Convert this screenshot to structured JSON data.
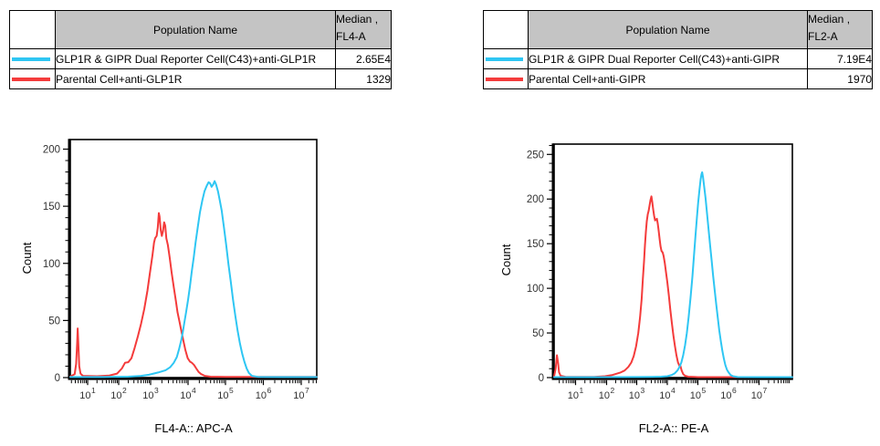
{
  "colors": {
    "cyan": "#2EC6F3",
    "red": "#F43B3B",
    "table_header_bg": "#C4C4C4",
    "axis": "#000000",
    "tick_label": "#333333"
  },
  "tables": [
    {
      "header": {
        "population": "Population Name",
        "median_line1": "Median ,",
        "median_line2": "FL4-A"
      },
      "rows": [
        {
          "color": "cyan",
          "name": "GLP1R & GIPR Dual Reporter Cell(C43)+anti-GLP1R",
          "median": "2.65E4"
        },
        {
          "color": "red",
          "name": "Parental Cell+anti-GLP1R",
          "median": "1329"
        }
      ]
    },
    {
      "header": {
        "population": "Population Name",
        "median_line1": "Median ,",
        "median_line2": "FL2-A"
      },
      "rows": [
        {
          "color": "cyan",
          "name": "GLP1R & GIPR Dual Reporter Cell(C43)+anti-GIPR",
          "median": "7.19E4"
        },
        {
          "color": "red",
          "name": "Parental Cell+anti-GIPR",
          "median": "1970"
        }
      ]
    }
  ],
  "chart_data": [
    {
      "type": "line",
      "title": "",
      "xlabel": "FL4-A:: APC-A",
      "ylabel": "Count",
      "x_scale": "log",
      "grid": false,
      "legend_position": "table-above",
      "y_ticks": [
        0,
        50,
        100,
        150,
        200
      ],
      "y_minor_step": 10,
      "ylim": [
        0,
        208
      ],
      "x_axis": {
        "decades": [
          1,
          2,
          3,
          4,
          5,
          6,
          7
        ],
        "decade_labels": [
          "10^1",
          "10^2",
          "10^3",
          "10^4",
          "10^5",
          "10^6",
          "10^7"
        ],
        "decade_fracs": [
          0.0704,
          0.1963,
          0.3259,
          0.4778,
          0.6296,
          0.7833,
          0.937
        ],
        "exp_min": 0.44,
        "exp_max": 7.62
      },
      "series": [
        {
          "name": "Parental Cell+anti-GLP1R",
          "color_key": "red",
          "median": 1329,
          "points": [
            [
              0.44,
              1
            ],
            [
              0.58,
              3
            ],
            [
              0.63,
              12
            ],
            [
              0.66,
              30
            ],
            [
              0.68,
              43
            ],
            [
              0.7,
              30
            ],
            [
              0.73,
              10
            ],
            [
              0.77,
              3.5
            ],
            [
              0.85,
              1.5
            ],
            [
              1.3,
              1.2
            ],
            [
              1.7,
              1.8
            ],
            [
              1.95,
              3.5
            ],
            [
              2.1,
              8
            ],
            [
              2.2,
              13
            ],
            [
              2.3,
              13.5
            ],
            [
              2.4,
              17
            ],
            [
              2.5,
              26
            ],
            [
              2.6,
              36
            ],
            [
              2.7,
              47
            ],
            [
              2.8,
              60
            ],
            [
              2.9,
              76
            ],
            [
              2.98,
              92
            ],
            [
              3.05,
              107
            ],
            [
              3.09,
              118
            ],
            [
              3.12,
              122
            ],
            [
              3.16,
              124
            ],
            [
              3.19,
              131
            ],
            [
              3.22,
              144
            ],
            [
              3.24,
              141
            ],
            [
              3.27,
              129
            ],
            [
              3.3,
              124
            ],
            [
              3.33,
              128
            ],
            [
              3.36,
              136
            ],
            [
              3.39,
              133
            ],
            [
              3.42,
              122
            ],
            [
              3.46,
              116
            ],
            [
              3.51,
              105
            ],
            [
              3.56,
              92
            ],
            [
              3.62,
              79
            ],
            [
              3.67,
              68
            ],
            [
              3.72,
              57
            ],
            [
              3.77,
              49
            ],
            [
              3.82,
              41
            ],
            [
              3.87,
              33
            ],
            [
              3.93,
              24
            ],
            [
              3.99,
              17
            ],
            [
              4.05,
              14
            ],
            [
              4.1,
              13
            ],
            [
              4.16,
              11
            ],
            [
              4.22,
              8
            ],
            [
              4.28,
              5
            ],
            [
              4.35,
              3
            ],
            [
              4.45,
              1.5
            ],
            [
              4.6,
              0.8
            ],
            [
              5.0,
              0.6
            ],
            [
              6.0,
              0.6
            ],
            [
              7.62,
              0.6
            ]
          ]
        },
        {
          "name": "GLP1R & GIPR Dual Reporter Cell(C43)+anti-GLP1R",
          "color_key": "cyan",
          "median": 26500,
          "points": [
            [
              0.44,
              0.5
            ],
            [
              1.5,
              0.5
            ],
            [
              2.3,
              0.8
            ],
            [
              2.7,
              1.5
            ],
            [
              2.95,
              2.5
            ],
            [
              3.2,
              4.5
            ],
            [
              3.4,
              6.5
            ],
            [
              3.52,
              9
            ],
            [
              3.62,
              13
            ],
            [
              3.7,
              18
            ],
            [
              3.76,
              25
            ],
            [
              3.82,
              33
            ],
            [
              3.86,
              40
            ],
            [
              3.9,
              48
            ],
            [
              3.95,
              58
            ],
            [
              4.0,
              68
            ],
            [
              4.05,
              80
            ],
            [
              4.1,
              93
            ],
            [
              4.15,
              105
            ],
            [
              4.2,
              118
            ],
            [
              4.26,
              132
            ],
            [
              4.32,
              145
            ],
            [
              4.38,
              155
            ],
            [
              4.44,
              163
            ],
            [
              4.5,
              168
            ],
            [
              4.55,
              171
            ],
            [
              4.59,
              170
            ],
            [
              4.63,
              167
            ],
            [
              4.67,
              169
            ],
            [
              4.71,
              172
            ],
            [
              4.75,
              169
            ],
            [
              4.8,
              163
            ],
            [
              4.85,
              155
            ],
            [
              4.9,
              146
            ],
            [
              4.96,
              131
            ],
            [
              5.02,
              116
            ],
            [
              5.08,
              99
            ],
            [
              5.14,
              84
            ],
            [
              5.2,
              68
            ],
            [
              5.26,
              54
            ],
            [
              5.32,
              41
            ],
            [
              5.38,
              30
            ],
            [
              5.44,
              21
            ],
            [
              5.5,
              14
            ],
            [
              5.56,
              8
            ],
            [
              5.62,
              4
            ],
            [
              5.7,
              1.5
            ],
            [
              5.85,
              0.6
            ],
            [
              6.5,
              0.5
            ],
            [
              7.62,
              0.5
            ]
          ]
        }
      ]
    },
    {
      "type": "line",
      "title": "",
      "xlabel": "FL2-A:: PE-A",
      "ylabel": "Count",
      "x_scale": "log",
      "grid": false,
      "legend_position": "table-above",
      "y_ticks": [
        0,
        50,
        100,
        150,
        200,
        250
      ],
      "y_minor_step": 10,
      "ylim": [
        0,
        261
      ],
      "x_axis": {
        "decades": [
          1,
          2,
          3,
          4,
          5,
          6,
          7
        ],
        "decade_labels": [
          "10^1",
          "10^2",
          "10^3",
          "10^4",
          "10^5",
          "10^6",
          "10^7"
        ],
        "decade_fracs": [
          0.09,
          0.2203,
          0.3467,
          0.4751,
          0.6034,
          0.7318,
          0.8601
        ],
        "exp_min": 0.31,
        "exp_max": 8.05
      },
      "series": [
        {
          "name": "Parental Cell+anti-GIPR",
          "color_key": "red",
          "median": 1970,
          "points": [
            [
              0.31,
              1.5
            ],
            [
              0.36,
              10
            ],
            [
              0.4,
              25
            ],
            [
              0.44,
              16
            ],
            [
              0.47,
              6
            ],
            [
              0.52,
              2
            ],
            [
              0.7,
              0.7
            ],
            [
              1.6,
              0.7
            ],
            [
              1.95,
              1.5
            ],
            [
              2.2,
              3
            ],
            [
              2.45,
              5.5
            ],
            [
              2.6,
              8
            ],
            [
              2.72,
              12
            ],
            [
              2.82,
              17
            ],
            [
              2.9,
              24
            ],
            [
              2.98,
              35
            ],
            [
              3.05,
              50
            ],
            [
              3.11,
              68
            ],
            [
              3.16,
              88
            ],
            [
              3.2,
              110
            ],
            [
              3.24,
              130
            ],
            [
              3.27,
              148
            ],
            [
              3.3,
              163
            ],
            [
              3.33,
              175
            ],
            [
              3.36,
              183
            ],
            [
              3.39,
              187
            ],
            [
              3.42,
              193
            ],
            [
              3.45,
              199
            ],
            [
              3.48,
              203
            ],
            [
              3.51,
              196
            ],
            [
              3.54,
              188
            ],
            [
              3.57,
              181
            ],
            [
              3.6,
              176
            ],
            [
              3.63,
              177
            ],
            [
              3.66,
              178
            ],
            [
              3.69,
              172
            ],
            [
              3.72,
              164
            ],
            [
              3.75,
              155
            ],
            [
              3.78,
              147
            ],
            [
              3.81,
              142
            ],
            [
              3.85,
              140
            ],
            [
              3.88,
              136
            ],
            [
              3.92,
              128
            ],
            [
              3.96,
              117
            ],
            [
              4.0,
              107
            ],
            [
              4.05,
              92
            ],
            [
              4.1,
              76
            ],
            [
              4.15,
              61
            ],
            [
              4.2,
              47
            ],
            [
              4.25,
              35
            ],
            [
              4.3,
              25
            ],
            [
              4.35,
              17
            ],
            [
              4.4,
              13
            ],
            [
              4.43,
              13
            ],
            [
              4.47,
              8
            ],
            [
              4.52,
              4
            ],
            [
              4.58,
              2
            ],
            [
              4.68,
              1
            ],
            [
              5.0,
              0.5
            ],
            [
              6.0,
              0.5
            ],
            [
              8.05,
              0.5
            ]
          ]
        },
        {
          "name": "GLP1R & GIPR Dual Reporter Cell(C43)+anti-GIPR",
          "color_key": "cyan",
          "median": 71900,
          "points": [
            [
              0.31,
              0.5
            ],
            [
              1.0,
              0.5
            ],
            [
              2.0,
              0.5
            ],
            [
              3.0,
              0.6
            ],
            [
              3.5,
              0.8
            ],
            [
              3.8,
              1
            ],
            [
              4.0,
              1.5
            ],
            [
              4.15,
              3
            ],
            [
              4.25,
              5
            ],
            [
              4.33,
              8
            ],
            [
              4.4,
              12
            ],
            [
              4.46,
              17
            ],
            [
              4.52,
              25
            ],
            [
              4.58,
              36
            ],
            [
              4.64,
              50
            ],
            [
              4.7,
              68
            ],
            [
              4.76,
              90
            ],
            [
              4.82,
              113
            ],
            [
              4.87,
              135
            ],
            [
              4.92,
              158
            ],
            [
              4.97,
              180
            ],
            [
              5.01,
              196
            ],
            [
              5.05,
              210
            ],
            [
              5.09,
              222
            ],
            [
              5.12,
              228
            ],
            [
              5.14,
              230
            ],
            [
              5.17,
              224
            ],
            [
              5.21,
              213
            ],
            [
              5.25,
              201
            ],
            [
              5.3,
              184
            ],
            [
              5.35,
              166
            ],
            [
              5.4,
              148
            ],
            [
              5.45,
              131
            ],
            [
              5.5,
              114
            ],
            [
              5.55,
              98
            ],
            [
              5.6,
              82
            ],
            [
              5.65,
              67
            ],
            [
              5.7,
              53
            ],
            [
              5.75,
              41
            ],
            [
              5.8,
              30
            ],
            [
              5.85,
              21
            ],
            [
              5.9,
              14
            ],
            [
              5.95,
              9
            ],
            [
              6.0,
              6
            ],
            [
              6.07,
              3
            ],
            [
              6.15,
              1.5
            ],
            [
              6.3,
              0.6
            ],
            [
              7.0,
              0.5
            ],
            [
              8.05,
              0.5
            ]
          ]
        }
      ]
    }
  ]
}
